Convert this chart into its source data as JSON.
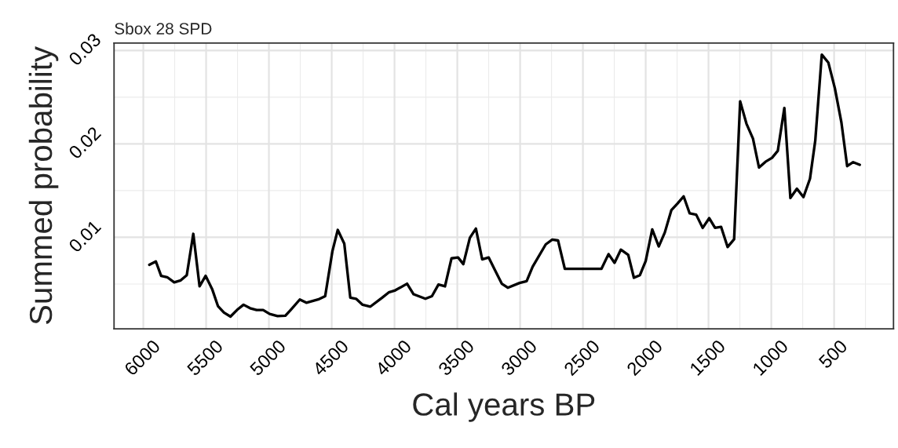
{
  "chart_data": {
    "type": "line",
    "title": "Sbox 28 SPD",
    "xlabel": "Cal years BP",
    "ylabel": "Summed probability",
    "x": [
      5952,
      5900,
      5858,
      5810,
      5754,
      5702,
      5654,
      5602,
      5552,
      5504,
      5452,
      5406,
      5358,
      5306,
      5254,
      5202,
      5150,
      5098,
      5046,
      4994,
      4931,
      4869,
      4827,
      4754,
      4702,
      4608,
      4552,
      4494,
      4452,
      4400,
      4352,
      4306,
      4254,
      4192,
      4098,
      4046,
      3994,
      3900,
      3848,
      3754,
      3702,
      3650,
      3598,
      3546,
      3494,
      3452,
      3400,
      3352,
      3302,
      3250,
      3198,
      3146,
      3098,
      3004,
      2948,
      2900,
      2796,
      2744,
      2698,
      2644,
      2352,
      2296,
      2248,
      2198,
      2139,
      2094,
      2046,
      2000,
      1948,
      1896,
      1848,
      1796,
      1748,
      1698,
      1650,
      1598,
      1546,
      1494,
      1448,
      1400,
      1348,
      1296,
      1248,
      1198,
      1146,
      1098,
      1046,
      994,
      948,
      896,
      848,
      796,
      744,
      692,
      650,
      598,
      546,
      494,
      442,
      396,
      348,
      296
    ],
    "series": [
      {
        "color": "#000000",
        "values": [
          0.00705,
          0.00741,
          0.00587,
          0.00573,
          0.00517,
          0.00539,
          0.00595,
          0.01037,
          0.00475,
          0.00587,
          0.00446,
          0.00264,
          0.00194,
          0.00151,
          0.00222,
          0.00278,
          0.00241,
          0.00222,
          0.00222,
          0.00179,
          0.00157,
          0.0016,
          0.00222,
          0.00334,
          0.003,
          0.00334,
          0.0037,
          0.00854,
          0.01079,
          0.00933,
          0.00354,
          0.00342,
          0.00278,
          0.00258,
          0.00354,
          0.0041,
          0.00432,
          0.00503,
          0.0039,
          0.00342,
          0.0037,
          0.00494,
          0.00475,
          0.00775,
          0.00784,
          0.00713,
          0.00994,
          0.01093,
          0.00764,
          0.00784,
          0.00643,
          0.00503,
          0.0046,
          0.00511,
          0.00531,
          0.00685,
          0.00924,
          0.00975,
          0.00966,
          0.00663,
          0.00663,
          0.0082,
          0.00727,
          0.00868,
          0.00812,
          0.00567,
          0.00595,
          0.00747,
          0.01084,
          0.00902,
          0.01051,
          0.0129,
          0.0136,
          0.01438,
          0.01256,
          0.01242,
          0.01101,
          0.01205,
          0.01101,
          0.01112,
          0.00896,
          0.0098,
          0.02456,
          0.02217,
          0.02057,
          0.01747,
          0.01809,
          0.01851,
          0.01927,
          0.02385,
          0.01421,
          0.0152,
          0.0143,
          0.01627,
          0.02034,
          0.02956,
          0.02871,
          0.02596,
          0.02231,
          0.01762,
          0.01804,
          0.01776
        ]
      }
    ],
    "xlim": [
      6233,
      27
    ],
    "ylim": [
      0.0002,
      0.0308
    ],
    "xticks": [
      6000,
      5500,
      5000,
      4500,
      4000,
      3500,
      3000,
      2500,
      2000,
      1500,
      1000,
      500
    ],
    "yticks": [
      0.01,
      0.02,
      0.03
    ],
    "grid": true,
    "legend": false,
    "line_style": "solid",
    "marker": "none"
  }
}
